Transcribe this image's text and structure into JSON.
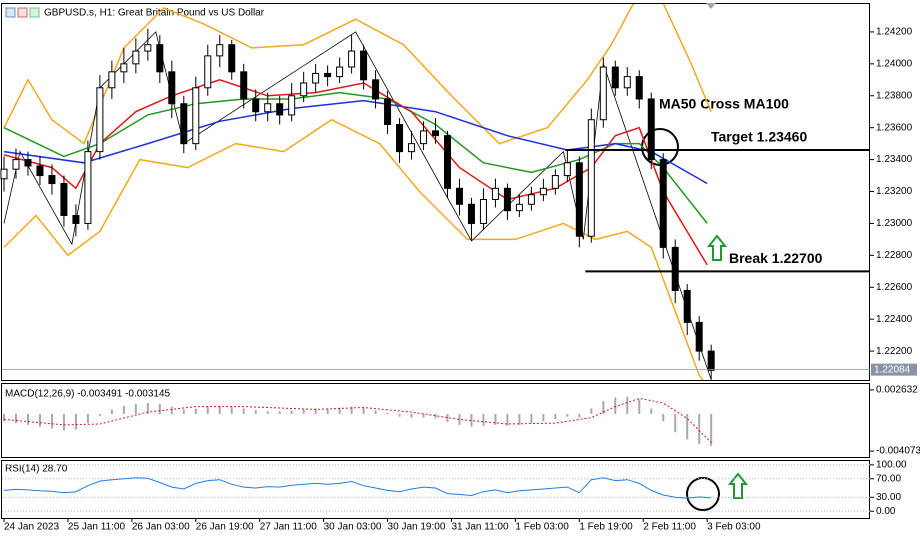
{
  "chart_data": [
    {
      "type": "candlestick",
      "title": "GBPUSD.s, H1:  Great Britain Pound vs US Dollar",
      "xlim": [
        -0.75,
        216.75
      ],
      "xticks": [
        {
          "value": 0,
          "label": "24 Jan 2023"
        },
        {
          "value": 16,
          "label": "25 Jan 11:00"
        },
        {
          "value": 32,
          "label": "26 Jan 03:00"
        },
        {
          "value": 48,
          "label": "26 Jan 19:00"
        },
        {
          "value": 64,
          "label": "27 Jan 11:00"
        },
        {
          "value": 80,
          "label": "30 Jan 03:00"
        },
        {
          "value": 96,
          "label": "30 Jan 19:00"
        },
        {
          "value": 112,
          "label": "31 Jan 11:00"
        },
        {
          "value": 128,
          "label": "1 Feb 03:00"
        },
        {
          "value": 144,
          "label": "1 Feb 19:00"
        },
        {
          "value": 160,
          "label": "2 Feb 11:00"
        },
        {
          "value": 176,
          "label": "3 Feb 03:00"
        }
      ],
      "ylim": [
        1.22019,
        1.24375
      ],
      "yticks": [
        {
          "value": 1.222,
          "label": "1.22200"
        },
        {
          "value": 1.224,
          "label": "1.22400"
        },
        {
          "value": 1.226,
          "label": "1.22600"
        },
        {
          "value": 1.228,
          "label": "1.22800"
        },
        {
          "value": 1.23,
          "label": "1.23000"
        },
        {
          "value": 1.232,
          "label": "1.23200"
        },
        {
          "value": 1.234,
          "label": "1.23400"
        },
        {
          "value": 1.236,
          "label": "1.23600"
        },
        {
          "value": 1.238,
          "label": "1.23800"
        },
        {
          "value": 1.24,
          "label": "1.24000"
        },
        {
          "value": 1.242,
          "label": "1.24200"
        }
      ],
      "x": [
        0,
        3,
        6,
        9,
        12,
        15,
        18,
        21,
        24,
        27,
        30,
        33,
        36,
        39,
        42,
        45,
        48,
        51,
        54,
        57,
        60,
        63,
        66,
        69,
        72,
        75,
        78,
        81,
        84,
        87,
        90,
        93,
        96,
        99,
        102,
        105,
        108,
        111,
        114,
        117,
        120,
        123,
        126,
        129,
        132,
        135,
        138,
        141,
        144,
        147,
        150,
        153,
        156,
        159,
        162,
        165,
        168,
        171,
        174,
        177
      ],
      "open": [
        1.2328,
        1.2334,
        1.234,
        1.2336,
        1.233,
        1.2325,
        1.2305,
        1.23,
        1.2345,
        1.2385,
        1.2395,
        1.24,
        1.2408,
        1.2412,
        1.2395,
        1.2375,
        1.235,
        1.2385,
        1.2405,
        1.2412,
        1.2395,
        1.2378,
        1.237,
        1.2375,
        1.2368,
        1.238,
        1.2388,
        1.2394,
        1.2392,
        1.2398,
        1.2408,
        1.239,
        1.2378,
        1.2362,
        1.2345,
        1.235,
        1.2358,
        1.2355,
        1.2322,
        1.2312,
        1.23,
        1.2315,
        1.2322,
        1.2308,
        1.2312,
        1.2318,
        1.2322,
        1.233,
        1.2338,
        1.2292,
        1.2365,
        1.2398,
        1.2385,
        1.2392,
        1.2378,
        1.234,
        1.2285,
        1.2258,
        1.2238,
        1.222
      ],
      "high": [
        1.2342,
        1.2347,
        1.2345,
        1.2342,
        1.2337,
        1.233,
        1.2312,
        1.2352,
        1.2393,
        1.2402,
        1.241,
        1.2416,
        1.2422,
        1.2418,
        1.2402,
        1.238,
        1.2392,
        1.2412,
        1.2418,
        1.2415,
        1.24,
        1.2384,
        1.2382,
        1.238,
        1.2388,
        1.2395,
        1.24,
        1.2399,
        1.2404,
        1.2418,
        1.2412,
        1.2396,
        1.2383,
        1.2366,
        1.2358,
        1.2364,
        1.2366,
        1.2358,
        1.2328,
        1.2316,
        1.2322,
        1.2328,
        1.2325,
        1.2318,
        1.2323,
        1.2328,
        1.2334,
        1.2346,
        1.2342,
        1.2372,
        1.2404,
        1.2402,
        1.2398,
        1.2396,
        1.2382,
        1.2344,
        1.229,
        1.2262,
        1.2242,
        1.2224
      ],
      "low": [
        1.232,
        1.2328,
        1.233,
        1.2324,
        1.2318,
        1.2298,
        1.2292,
        1.2296,
        1.234,
        1.2378,
        1.2388,
        1.2394,
        1.2402,
        1.2388,
        1.2366,
        1.2344,
        1.2346,
        1.238,
        1.2398,
        1.239,
        1.2372,
        1.2364,
        1.2364,
        1.2362,
        1.2364,
        1.2376,
        1.2382,
        1.2386,
        1.2388,
        1.2394,
        1.2384,
        1.2372,
        1.2356,
        1.2338,
        1.234,
        1.2346,
        1.235,
        1.2316,
        1.2305,
        1.229,
        1.2296,
        1.231,
        1.2302,
        1.2304,
        1.2308,
        1.2314,
        1.2318,
        1.2326,
        1.2285,
        1.2288,
        1.236,
        1.238,
        1.238,
        1.2372,
        1.2334,
        1.2278,
        1.225,
        1.223,
        1.2214,
        1.2202
      ],
      "close": [
        1.2334,
        1.234,
        1.2336,
        1.233,
        1.2325,
        1.2305,
        1.23,
        1.2345,
        1.2385,
        1.2395,
        1.24,
        1.2408,
        1.2412,
        1.2395,
        1.2375,
        1.235,
        1.2385,
        1.2405,
        1.2412,
        1.2395,
        1.2378,
        1.237,
        1.2375,
        1.2368,
        1.238,
        1.2388,
        1.2394,
        1.2392,
        1.2398,
        1.2408,
        1.239,
        1.2378,
        1.2362,
        1.2345,
        1.235,
        1.2358,
        1.2355,
        1.2322,
        1.2312,
        1.23,
        1.2315,
        1.2322,
        1.2308,
        1.2312,
        1.2318,
        1.2322,
        1.233,
        1.2338,
        1.2292,
        1.2365,
        1.2398,
        1.2385,
        1.2392,
        1.2378,
        1.234,
        1.2285,
        1.2258,
        1.2238,
        1.222,
        1.2208
      ],
      "overlays": [
        {
          "color": "#f4a81c",
          "x": [
            0,
            6,
            12,
            20,
            30,
            40,
            50,
            62,
            75,
            88,
            100,
            112,
            124,
            136,
            146,
            152,
            158,
            165,
            172,
            177
          ],
          "values": [
            1.236,
            1.239,
            1.2365,
            1.235,
            1.241,
            1.2435,
            1.2425,
            1.241,
            1.2412,
            1.2428,
            1.2412,
            1.238,
            1.235,
            1.236,
            1.239,
            1.2412,
            1.244,
            1.2438,
            1.24,
            1.237
          ]
        },
        {
          "color": "#f4a81c",
          "x": [
            0,
            8,
            16,
            24,
            34,
            46,
            58,
            70,
            82,
            94,
            104,
            116,
            128,
            140,
            148,
            156,
            162,
            168,
            174,
            177
          ],
          "values": [
            1.2285,
            1.2305,
            1.228,
            1.2295,
            1.234,
            1.2335,
            1.235,
            1.2345,
            1.2365,
            1.235,
            1.232,
            1.229,
            1.229,
            1.23,
            1.229,
            1.2295,
            1.2285,
            1.2245,
            1.2205,
            1.2195
          ]
        },
        {
          "color": "#000000",
          "x": [
            0,
            4,
            17,
            24,
            38,
            45,
            88,
            117,
            140,
            145,
            150,
            177
          ],
          "values": [
            1.23,
            1.2345,
            1.2287,
            1.2385,
            1.242,
            1.235,
            1.242,
            1.2289,
            1.2345,
            1.229,
            1.24,
            1.2202
          ]
        },
        {
          "color": "#1f9a1f",
          "x": [
            0,
            15,
            24,
            36,
            48,
            60,
            72,
            84,
            96,
            108,
            120,
            132,
            144,
            153,
            159,
            165,
            176
          ],
          "values": [
            1.236,
            1.2342,
            1.235,
            1.2368,
            1.2375,
            1.2378,
            1.2378,
            1.2382,
            1.2378,
            1.2362,
            1.2338,
            1.2332,
            1.234,
            1.235,
            1.235,
            1.2335,
            1.23
          ]
        },
        {
          "color": "#1c2fe0",
          "x": [
            0,
            20,
            36,
            54,
            72,
            90,
            108,
            126,
            141,
            153,
            162,
            176
          ],
          "values": [
            1.2345,
            1.2338,
            1.235,
            1.2364,
            1.2372,
            1.2377,
            1.237,
            1.2355,
            1.2346,
            1.235,
            1.2345,
            1.2325
          ]
        },
        {
          "color": "#e01818",
          "x": [
            0,
            12,
            18,
            24,
            33,
            42,
            54,
            66,
            78,
            90,
            102,
            114,
            126,
            138,
            147,
            153,
            159,
            165,
            176
          ],
          "values": [
            1.2343,
            1.2335,
            1.2322,
            1.235,
            1.237,
            1.238,
            1.239,
            1.238,
            1.2382,
            1.2388,
            1.237,
            1.2335,
            1.2315,
            1.2322,
            1.2335,
            1.2355,
            1.236,
            1.232,
            1.2274
          ]
        }
      ],
      "levels": [
        {
          "label": "Target 1.23460",
          "value": 1.2346,
          "x0": 140.5
        },
        {
          "label": "Break 1.22700",
          "value": 1.227,
          "x0": 145.5
        }
      ],
      "annotation": "MA50 Cross MA100",
      "last_price": {
        "value": 1.22084,
        "label": "1.22084"
      }
    },
    {
      "type": "macd",
      "title": "MACD(12,26,9) -0.003491 -0.003145",
      "ylim": [
        -0.00472,
        0.00328
      ],
      "yticks": [
        -0.004073,
        0.002632
      ],
      "x": [
        0,
        3,
        6,
        9,
        12,
        15,
        18,
        21,
        24,
        27,
        30,
        33,
        36,
        39,
        42,
        45,
        48,
        51,
        54,
        57,
        60,
        63,
        66,
        69,
        72,
        75,
        78,
        81,
        84,
        87,
        90,
        93,
        96,
        99,
        102,
        105,
        108,
        111,
        114,
        117,
        120,
        123,
        126,
        129,
        132,
        135,
        138,
        141,
        144,
        147,
        150,
        153,
        156,
        159,
        162,
        165,
        168,
        171,
        174,
        177
      ],
      "values": [
        -0.0008,
        -0.001,
        -0.0012,
        -0.0014,
        -0.0016,
        -0.0018,
        -0.0017,
        -0.001,
        -0.0002,
        0.0005,
        0.0009,
        0.0011,
        0.0012,
        0.0011,
        0.0008,
        0.0005,
        0.0006,
        0.0008,
        0.0009,
        0.0008,
        0.0006,
        0.0004,
        0.0003,
        0.0003,
        0.0004,
        0.0005,
        0.0006,
        0.0006,
        0.0007,
        0.0008,
        0.0007,
        0.0004,
        0.0001,
        -0.0003,
        -0.0004,
        -0.0004,
        -0.0005,
        -0.0009,
        -0.0012,
        -0.0014,
        -0.0013,
        -0.0012,
        -0.0013,
        -0.0012,
        -0.001,
        -0.0008,
        -0.0006,
        -0.0003,
        -0.0004,
        0.0006,
        0.0014,
        0.0018,
        0.0019,
        0.0016,
        0.0006,
        -0.0008,
        -0.002,
        -0.0028,
        -0.0033,
        -0.003491
      ],
      "signal": {
        "color": "#d01818",
        "x": [
          0,
          15,
          24,
          36,
          48,
          60,
          78,
          90,
          102,
          114,
          126,
          138,
          147,
          153,
          159,
          165,
          171,
          177
        ],
        "values": [
          -0.0006,
          -0.0012,
          -0.0011,
          0.0002,
          0.0008,
          0.0008,
          0.0005,
          0.0007,
          0.0002,
          -0.0006,
          -0.0011,
          -0.001,
          -0.0004,
          0.0008,
          0.0017,
          0.0012,
          -0.0005,
          -0.003145
        ]
      }
    },
    {
      "type": "line",
      "title": "RSI(14) 28.70",
      "color": "#1e7ee8",
      "ylim": [
        -14.6,
        108.3
      ],
      "yticks": [
        {
          "value": 0,
          "label": "0.00"
        },
        {
          "value": 30,
          "label": "30.00"
        },
        {
          "value": 70,
          "label": "70.00"
        },
        {
          "value": 100,
          "label": "100.00"
        }
      ],
      "x": [
        0,
        3,
        6,
        9,
        12,
        15,
        18,
        21,
        24,
        27,
        30,
        33,
        36,
        39,
        42,
        45,
        48,
        51,
        54,
        57,
        60,
        63,
        66,
        69,
        72,
        75,
        78,
        81,
        84,
        87,
        90,
        93,
        96,
        99,
        102,
        105,
        108,
        111,
        114,
        117,
        120,
        123,
        126,
        129,
        132,
        135,
        138,
        141,
        144,
        147,
        150,
        153,
        156,
        159,
        162,
        165,
        168,
        171,
        174,
        177
      ],
      "values": [
        45,
        47,
        46,
        44,
        43,
        40,
        42,
        55,
        65,
        68,
        70,
        72,
        71,
        62,
        52,
        48,
        60,
        66,
        68,
        58,
        52,
        50,
        53,
        52,
        56,
        58,
        60,
        58,
        60,
        64,
        55,
        50,
        45,
        42,
        48,
        52,
        50,
        38,
        36,
        34,
        42,
        46,
        40,
        44,
        46,
        48,
        50,
        52,
        40,
        68,
        72,
        66,
        68,
        60,
        45,
        35,
        30,
        28,
        31,
        28.7
      ]
    }
  ]
}
